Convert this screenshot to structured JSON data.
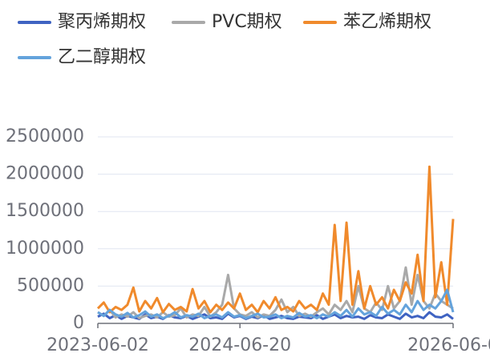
{
  "chart_data": {
    "type": "line",
    "categories": [
      "2023-06-02",
      null,
      null,
      null,
      null,
      null,
      null,
      null,
      null,
      null,
      null,
      null,
      null,
      null,
      null,
      null,
      null,
      null,
      null,
      null,
      null,
      null,
      null,
      null,
      "2024-06-20",
      null,
      null,
      null,
      null,
      null,
      null,
      null,
      null,
      null,
      null,
      null,
      null,
      null,
      null,
      null,
      null,
      null,
      null,
      null,
      null,
      null,
      null,
      null,
      null,
      null,
      null,
      null,
      null,
      null,
      null,
      null,
      null,
      null,
      null,
      null,
      "2026-06-0"
    ],
    "series": [
      {
        "name": "聚丙烯期权",
        "color": "#3f63c2",
        "values": [
          90000,
          130000,
          70000,
          110000,
          60000,
          100000,
          80000,
          60000,
          120000,
          70000,
          90000,
          60000,
          110000,
          80000,
          70000,
          100000,
          60000,
          90000,
          120000,
          70000,
          80000,
          60000,
          130000,
          80000,
          100000,
          60000,
          90000,
          70000,
          110000,
          60000,
          80000,
          100000,
          70000,
          60000,
          90000,
          80000,
          70000,
          110000,
          60000,
          90000,
          120000,
          70000,
          100000,
          80000,
          90000,
          60000,
          110000,
          80000,
          70000,
          120000,
          90000,
          60000,
          130000,
          80000,
          100000,
          70000,
          150000,
          90000,
          80000,
          120000,
          60000
        ]
      },
      {
        "name": "PVC期权",
        "color": "#a9a9a9",
        "values": [
          150000,
          100000,
          180000,
          80000,
          120000,
          90000,
          150000,
          70000,
          100000,
          120000,
          80000,
          150000,
          90000,
          110000,
          200000,
          80000,
          120000,
          100000,
          220000,
          90000,
          150000,
          250000,
          650000,
          200000,
          120000,
          100000,
          150000,
          80000,
          120000,
          100000,
          180000,
          320000,
          150000,
          220000,
          100000,
          130000,
          90000,
          150000,
          200000,
          120000,
          250000,
          180000,
          300000,
          150000,
          500000,
          200000,
          150000,
          280000,
          180000,
          500000,
          200000,
          300000,
          750000,
          250000,
          650000,
          300000,
          200000,
          400000,
          300000,
          250000,
          200000
        ]
      },
      {
        "name": "苯乙烯期权",
        "color": "#f08a2c",
        "values": [
          200000,
          280000,
          150000,
          220000,
          180000,
          250000,
          480000,
          160000,
          300000,
          200000,
          340000,
          150000,
          260000,
          180000,
          220000,
          160000,
          460000,
          200000,
          300000,
          150000,
          250000,
          180000,
          280000,
          200000,
          400000,
          180000,
          250000,
          150000,
          300000,
          200000,
          350000,
          180000,
          220000,
          160000,
          300000,
          200000,
          250000,
          180000,
          400000,
          250000,
          1320000,
          300000,
          1350000,
          250000,
          700000,
          200000,
          500000,
          250000,
          350000,
          200000,
          450000,
          300000,
          550000,
          400000,
          920000,
          300000,
          2100000,
          350000,
          820000,
          250000,
          1400000
        ]
      },
      {
        "name": "乙二醇期权",
        "color": "#64a3dc",
        "values": [
          150000,
          100000,
          180000,
          120000,
          90000,
          140000,
          80000,
          110000,
          160000,
          90000,
          120000,
          70000,
          100000,
          150000,
          80000,
          110000,
          90000,
          130000,
          70000,
          100000,
          120000,
          80000,
          150000,
          90000,
          110000,
          70000,
          100000,
          130000,
          80000,
          90000,
          120000,
          70000,
          100000,
          80000,
          140000,
          90000,
          110000,
          70000,
          120000,
          90000,
          150000,
          100000,
          180000,
          90000,
          200000,
          120000,
          150000,
          100000,
          220000,
          130000,
          180000,
          120000,
          250000,
          150000,
          300000,
          180000,
          250000,
          200000,
          300000,
          450000,
          150000
        ]
      }
    ],
    "ylim": [
      0,
      2500000
    ],
    "yticks": [
      0,
      500000,
      1000000,
      1500000,
      2000000,
      2500000
    ],
    "grid": true
  }
}
